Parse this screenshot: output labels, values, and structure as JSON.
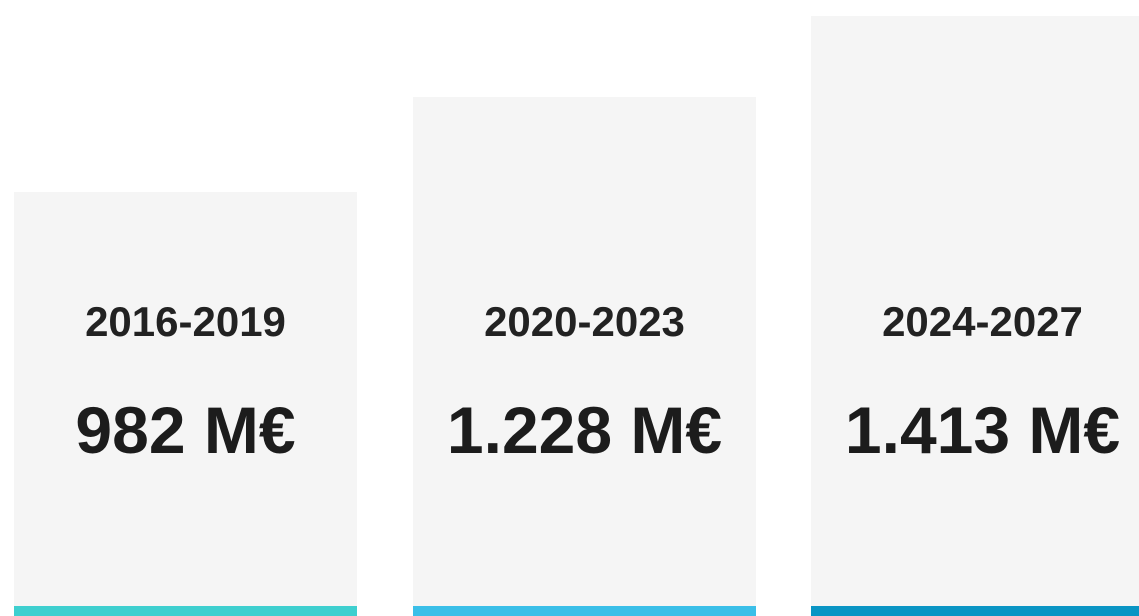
{
  "cards": [
    {
      "label": "2016-2019",
      "value": "982 M€"
    },
    {
      "label": "2020-2023",
      "value": "1.228 M€"
    },
    {
      "label": "2024-2027",
      "value": "1.413 M€"
    }
  ]
}
